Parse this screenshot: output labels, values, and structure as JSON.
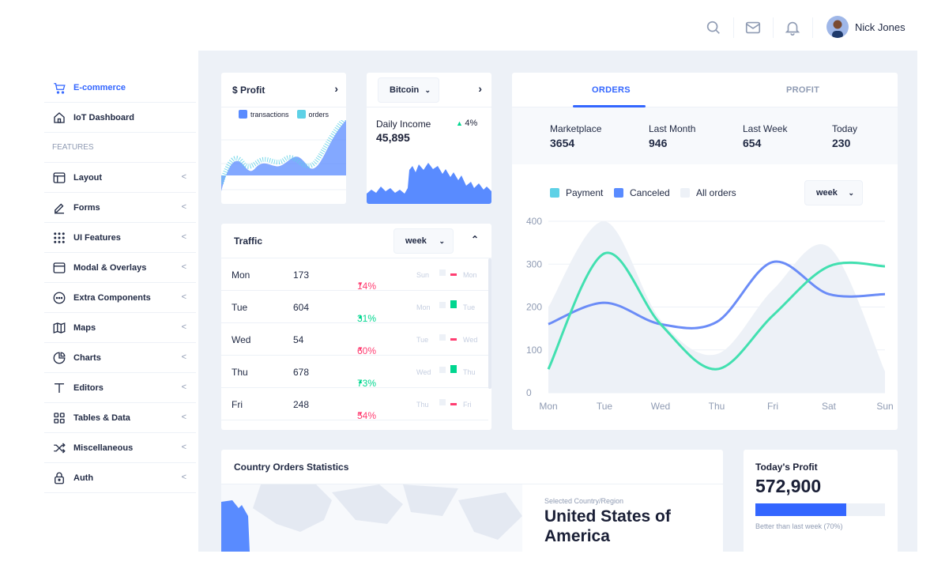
{
  "header": {
    "user_name": "Nick Jones",
    "icons": [
      "search-icon",
      "mail-icon",
      "bell-icon"
    ]
  },
  "sidebar": {
    "items": [
      {
        "label": "E-commerce",
        "icon": "cart-icon",
        "active": true
      },
      {
        "label": "IoT Dashboard",
        "icon": "home-icon"
      },
      {
        "group": "FEATURES"
      },
      {
        "label": "Layout",
        "icon": "layout-icon",
        "chevron": "<"
      },
      {
        "label": "Forms",
        "icon": "edit-icon",
        "chevron": "<"
      },
      {
        "label": "UI Features",
        "icon": "keypad-icon",
        "chevron": "<"
      },
      {
        "label": "Modal & Overlays",
        "icon": "browser-icon",
        "chevron": "<"
      },
      {
        "label": "Extra Components",
        "icon": "message-icon",
        "chevron": "<"
      },
      {
        "label": "Maps",
        "icon": "map-icon",
        "chevron": "<"
      },
      {
        "label": "Charts",
        "icon": "pie-chart-icon",
        "chevron": "<"
      },
      {
        "label": "Editors",
        "icon": "text-icon",
        "chevron": "<"
      },
      {
        "label": "Tables & Data",
        "icon": "grid-icon",
        "chevron": "<"
      },
      {
        "label": "Miscellaneous",
        "icon": "shuffle-icon",
        "chevron": "<"
      },
      {
        "label": "Auth",
        "icon": "lock-icon",
        "chevron": "<"
      }
    ]
  },
  "profit_card": {
    "title": "$ Profit",
    "arrow": "›",
    "legend": [
      {
        "label": "transactions",
        "color": "#598bff"
      },
      {
        "label": "orders",
        "color": "#5ed1e6"
      }
    ]
  },
  "bitcoin_card": {
    "select": "Bitcoin",
    "arrow": "›",
    "label": "Daily Income",
    "value": "45,895",
    "change": "4%"
  },
  "traffic_card": {
    "title": "Traffic",
    "select": "week",
    "rows": [
      {
        "day": "Mon",
        "value": "173",
        "change": "14%",
        "dir": "down",
        "prev": "Sun",
        "cur": "Mon"
      },
      {
        "day": "Tue",
        "value": "604",
        "change": "31%",
        "dir": "up",
        "prev": "Mon",
        "cur": "Tue"
      },
      {
        "day": "Wed",
        "value": "54",
        "change": "60%",
        "dir": "down",
        "prev": "Tue",
        "cur": "Wed"
      },
      {
        "day": "Thu",
        "value": "678",
        "change": "73%",
        "dir": "up",
        "prev": "Wed",
        "cur": "Thu"
      },
      {
        "day": "Fri",
        "value": "248",
        "change": "54%",
        "dir": "down",
        "prev": "Thu",
        "cur": "Fri"
      }
    ]
  },
  "orders_card": {
    "tabs": [
      "ORDERS",
      "PROFIT"
    ],
    "stats": [
      {
        "label": "Marketplace",
        "value": "3654"
      },
      {
        "label": "Last Month",
        "value": "946"
      },
      {
        "label": "Last Week",
        "value": "654"
      },
      {
        "label": "Today",
        "value": "230"
      }
    ],
    "legend": [
      {
        "label": "Payment",
        "color": "#5ed1e6"
      },
      {
        "label": "Canceled",
        "color": "#598bff"
      },
      {
        "label": "All orders",
        "color": "#edf1f7"
      }
    ],
    "select": "week"
  },
  "country_card": {
    "title": "Country Orders Statistics",
    "selected_label": "Selected Country/Region",
    "country_line1": "United States of",
    "country_line2": "America"
  },
  "today_profit": {
    "title": "Today's Profit",
    "value": "572,900",
    "progress": 0.7,
    "caption": "Better than last week (70%)"
  },
  "chart_data": {
    "type": "line",
    "categories": [
      "Mon",
      "Tue",
      "Wed",
      "Thu",
      "Fri",
      "Sat",
      "Sun"
    ],
    "ylim": [
      0,
      400
    ],
    "yticks": [
      "400",
      "300",
      "200",
      "100",
      "0"
    ],
    "series": [
      {
        "name": "Payment",
        "color": "#42e0b0",
        "values": [
          55,
          325,
          160,
          55,
          180,
          295,
          295
        ]
      },
      {
        "name": "Canceled",
        "color": "#6b8cf7",
        "values": [
          160,
          210,
          160,
          165,
          305,
          230,
          230
        ]
      },
      {
        "name": "All orders",
        "color": "#edf1f7",
        "values": [
          200,
          400,
          170,
          90,
          240,
          340,
          50
        ]
      }
    ]
  }
}
